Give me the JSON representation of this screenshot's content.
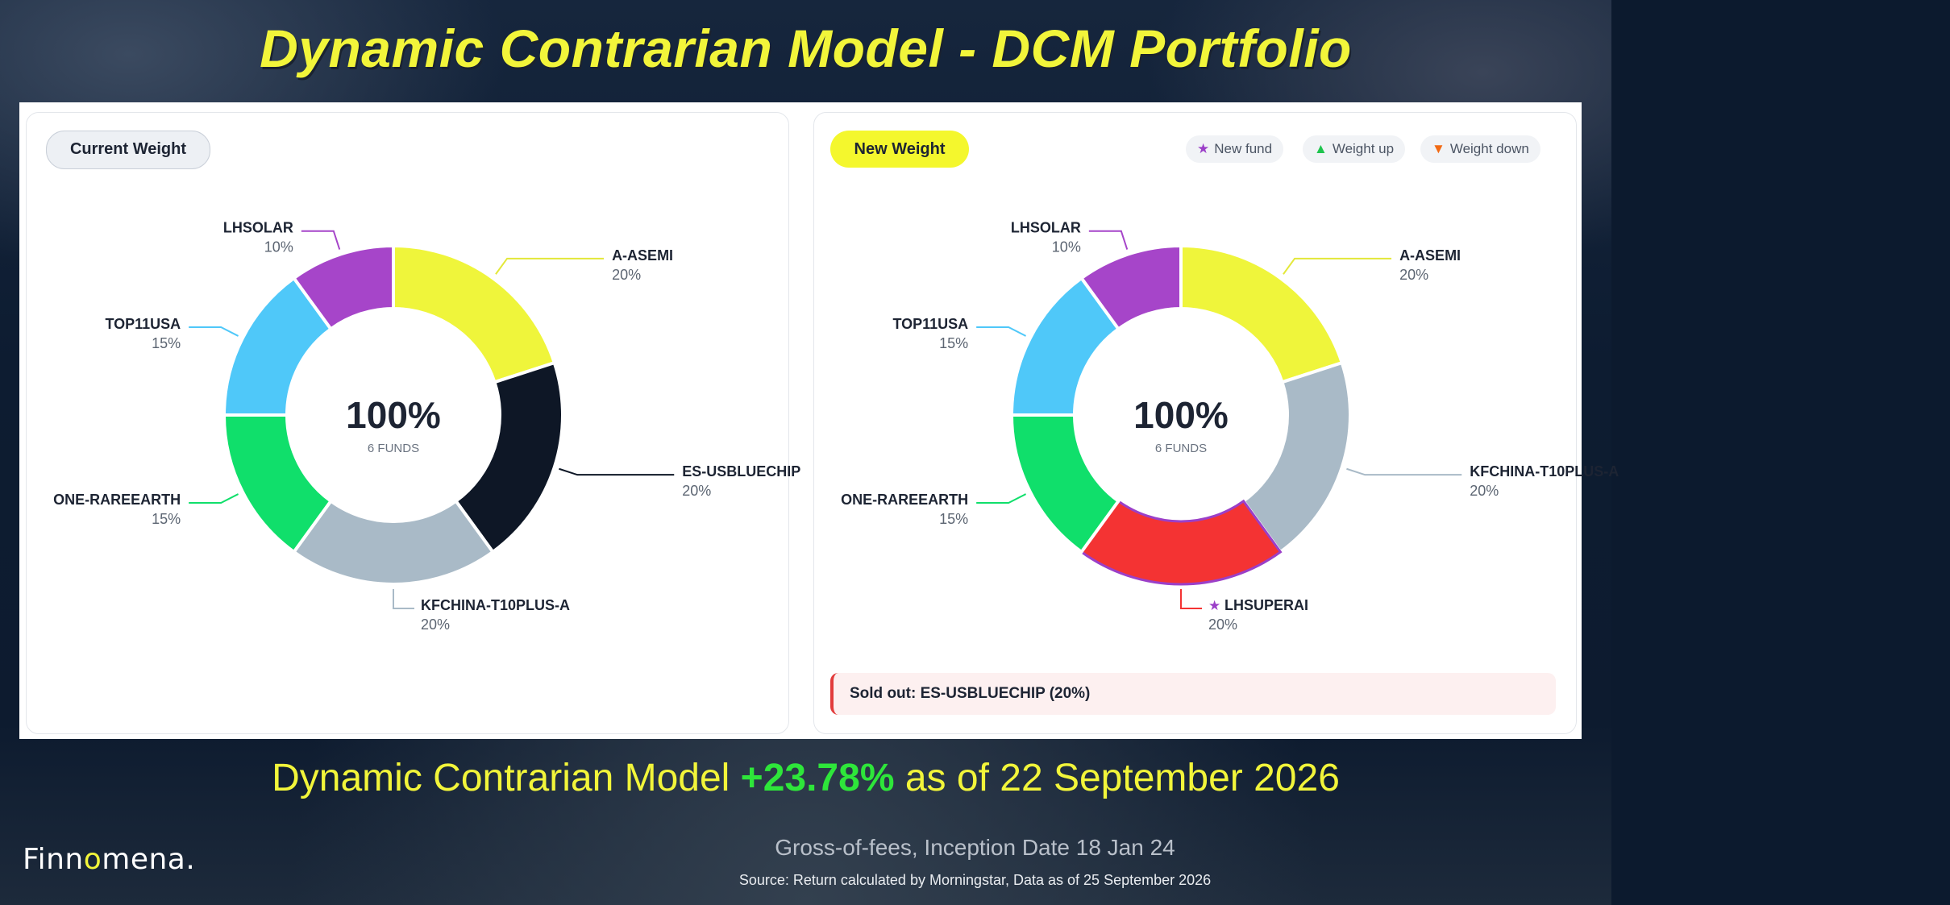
{
  "title": "Dynamic Contrarian Model - DCM Portfolio",
  "colors": {
    "title": "#f2f53a",
    "performance_value": "#2ee63a",
    "new_fund_marker": "#9b3fc8",
    "weight_up_marker": "#1fc44e",
    "weight_down_marker": "#f26a14"
  },
  "panels": {
    "current": {
      "badge": "Current Weight"
    },
    "new": {
      "badge": "New Weight",
      "legend": [
        {
          "icon": "star-icon",
          "symbol": "★",
          "label": "New fund",
          "color": "#9b3fc8"
        },
        {
          "icon": "triangle-up-icon",
          "symbol": "▲",
          "label": "Weight up",
          "color": "#1fc44e"
        },
        {
          "icon": "triangle-down-icon",
          "symbol": "▼",
          "label": "Weight down",
          "color": "#f26a14"
        }
      ],
      "sold_out": "Sold out: ES-USBLUECHIP (20%)"
    }
  },
  "chart_data": [
    {
      "type": "pie",
      "style": "donut",
      "center_value": "100%",
      "center_label": "6 FUNDS",
      "slices": [
        {
          "label": "A-ASEMI",
          "value": 20,
          "display": "20%",
          "color": "#eff53b"
        },
        {
          "label": "ES-USBLUECHIP",
          "value": 20,
          "display": "20%",
          "color": "#0e1726"
        },
        {
          "label": "KFCHINA-T10PLUS-A",
          "value": 20,
          "display": "20%",
          "color": "#a9bac7"
        },
        {
          "label": "ONE-RAREEARTH",
          "value": 15,
          "display": "15%",
          "color": "#10df6b"
        },
        {
          "label": "TOP11USA",
          "value": 15,
          "display": "15%",
          "color": "#4fc8f9"
        },
        {
          "label": "LHSOLAR",
          "value": 10,
          "display": "10%",
          "color": "#a645c9"
        }
      ]
    },
    {
      "type": "pie",
      "style": "donut",
      "center_value": "100%",
      "center_label": "6 FUNDS",
      "slices": [
        {
          "label": "A-ASEMI",
          "value": 20,
          "display": "20%",
          "color": "#eff53b"
        },
        {
          "label": "KFCHINA-T10PLUS-A",
          "value": 20,
          "display": "20%",
          "color": "#a9bac7"
        },
        {
          "label": "LHSUPERAI",
          "value": 20,
          "display": "20%",
          "color": "#f43333",
          "new_fund": true
        },
        {
          "label": "ONE-RAREEARTH",
          "value": 15,
          "display": "15%",
          "color": "#10df6b"
        },
        {
          "label": "TOP11USA",
          "value": 15,
          "display": "15%",
          "color": "#4fc8f9"
        },
        {
          "label": "LHSOLAR",
          "value": 10,
          "display": "10%",
          "color": "#a645c9"
        }
      ]
    }
  ],
  "performance": {
    "prefix": "Dynamic Contrarian Model",
    "value": "+23.78%",
    "suffix": "as of 22 September 2026"
  },
  "footer": {
    "logo_start": "Finn",
    "logo_accent": "o",
    "logo_end": "mena.",
    "fees_note": "Gross-of-fees, Inception Date 18 Jan 24",
    "source_note": "Source: Return calculated by  Morningstar, Data as of 25 September  2026"
  }
}
